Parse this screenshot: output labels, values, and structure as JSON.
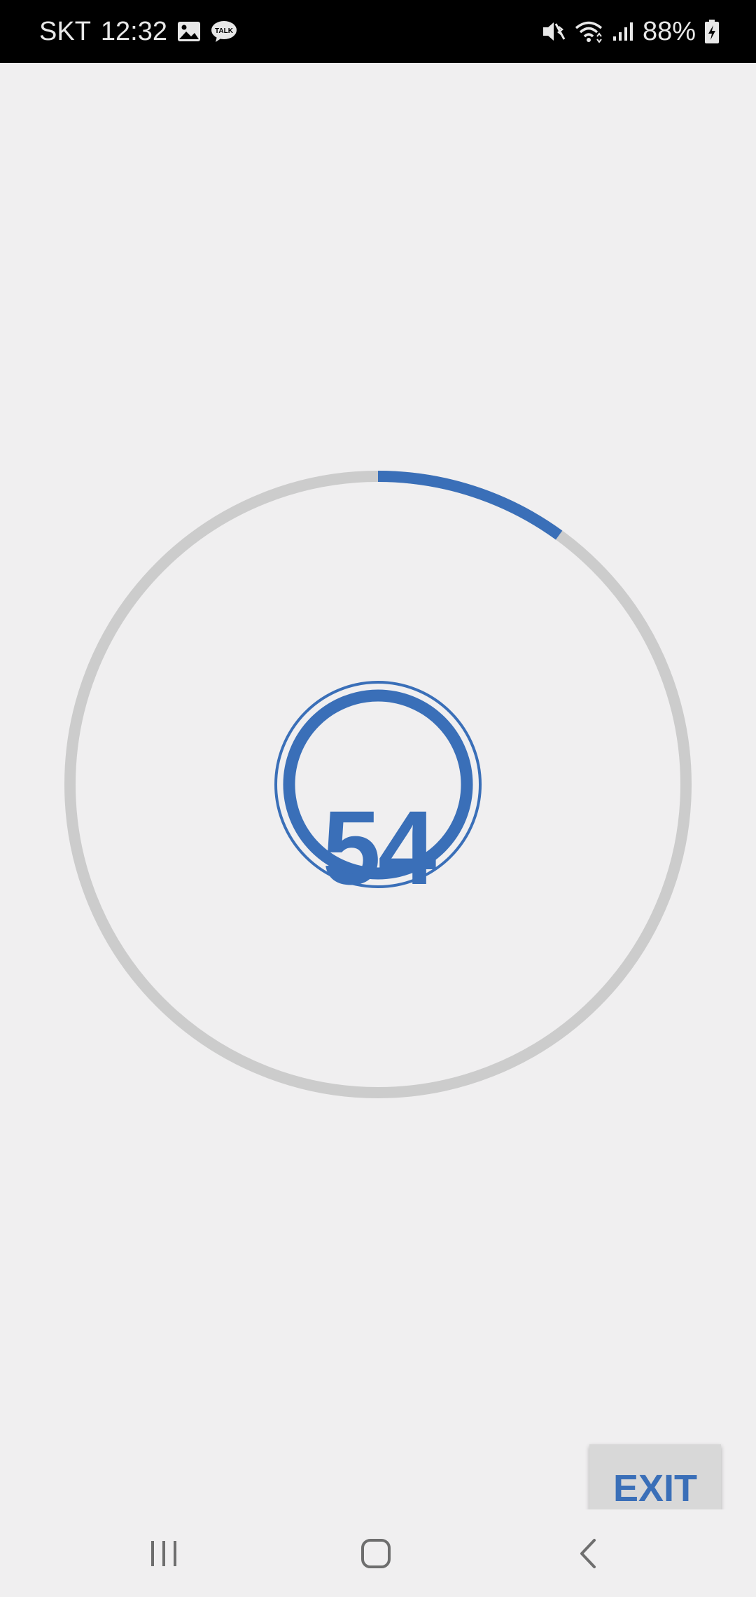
{
  "status_bar": {
    "carrier": "SKT",
    "time": "12:32",
    "battery": "88%",
    "left_icons": [
      "image-icon",
      "kakaotalk-icon"
    ],
    "kakaotalk_badge": "TALK",
    "right_icons": [
      "mute-vibrate-icon",
      "wifi-icon",
      "signal-icon",
      "battery-charging-icon"
    ]
  },
  "timer": {
    "count": "54",
    "progress_fraction": 0.1,
    "accent_color": "#3a6fb8",
    "track_color": "#cccccc"
  },
  "exit_button": {
    "label": "EXIT"
  },
  "nav_bar": {
    "items": [
      "recent-apps-icon",
      "home-icon",
      "back-icon"
    ]
  }
}
